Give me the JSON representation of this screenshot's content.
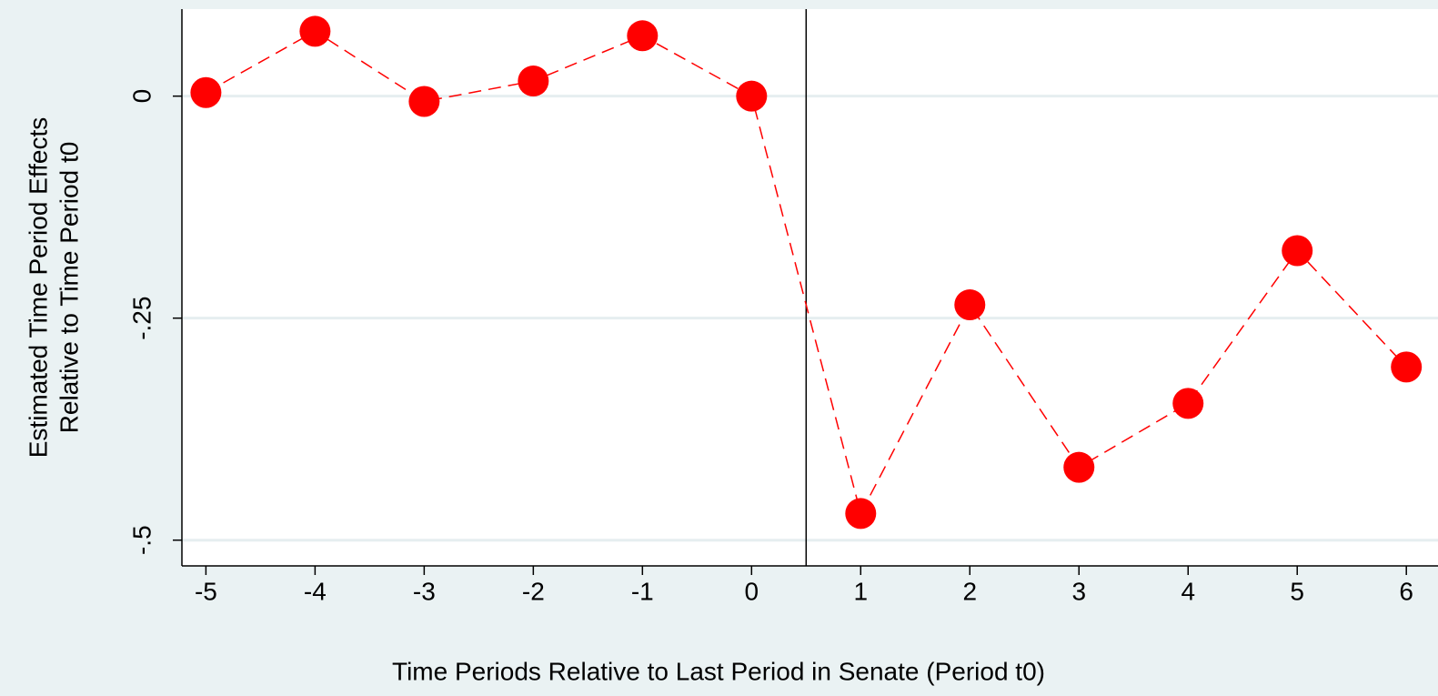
{
  "chart_data": {
    "type": "line",
    "xlabel": "Time Periods Relative to Last Period in Senate (Period t0)",
    "ylabel": [
      "Estimated Time Period Effects",
      "Relative to Time Period t0"
    ],
    "x": [
      -5,
      -4,
      -3,
      -2,
      -1,
      0,
      1,
      2,
      3,
      4,
      5,
      6
    ],
    "series": [
      {
        "color": "#ff0000",
        "values": [
          0.004,
          0.073,
          -0.006,
          0.017,
          0.068,
          0,
          -0.47,
          -0.235,
          -0.418,
          -0.346,
          -0.174,
          -0.305
        ]
      }
    ],
    "xlim": [
      -5.22,
      6.29
    ],
    "ylim": [
      -0.529,
      0.098
    ],
    "xticks": [
      -5,
      -4,
      -3,
      -2,
      -1,
      0,
      1,
      2,
      3,
      4,
      5,
      6
    ],
    "yticks": [
      0,
      {
        "value": -0.25,
        "label": "-.25"
      },
      {
        "value": -0.5,
        "label": "-.5"
      }
    ],
    "xline": 0.5,
    "grid": true
  }
}
